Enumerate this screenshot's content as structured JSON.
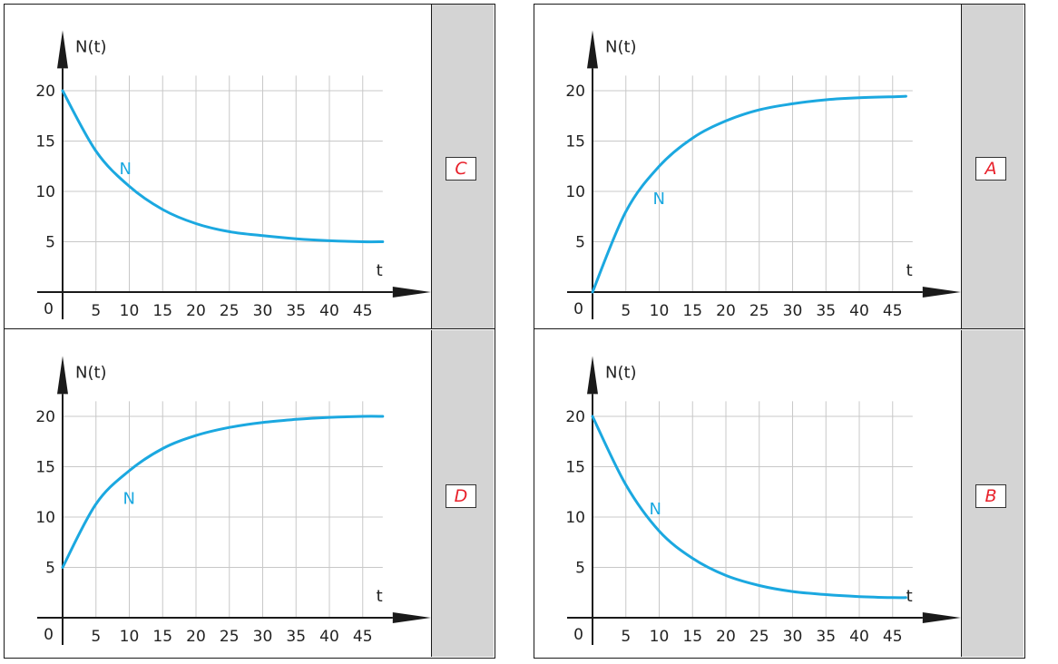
{
  "chart_data": [
    {
      "type": "line",
      "panel": "top-left",
      "label": "C",
      "ylabel": "N(t)",
      "xlabel": "t",
      "origin_label": "0",
      "curve_label": "N",
      "xlim": [
        0,
        48
      ],
      "ylim": [
        0,
        22
      ],
      "xticks": [
        5,
        10,
        15,
        20,
        25,
        30,
        35,
        40,
        45
      ],
      "yticks": [
        5,
        10,
        15,
        20
      ],
      "grid": true,
      "series": [
        {
          "x": [
            0,
            5,
            10,
            15,
            20,
            25,
            30,
            35,
            40,
            45,
            48
          ],
          "y": [
            20,
            14.0,
            10.5,
            8.2,
            6.8,
            6.0,
            5.6,
            5.3,
            5.1,
            5.0,
            5.0
          ]
        }
      ]
    },
    {
      "type": "line",
      "panel": "top-right",
      "label": "A",
      "ylabel": "N(t)",
      "xlabel": "t",
      "origin_label": "0",
      "curve_label": "N",
      "xlim": [
        0,
        48
      ],
      "ylim": [
        0,
        22
      ],
      "xticks": [
        5,
        10,
        15,
        20,
        25,
        30,
        35,
        40,
        45
      ],
      "yticks": [
        5,
        10,
        15,
        20
      ],
      "grid": true,
      "series": [
        {
          "x": [
            0,
            5,
            10,
            15,
            20,
            25,
            30,
            35,
            40,
            45,
            47
          ],
          "y": [
            0,
            8.0,
            12.5,
            15.3,
            17.0,
            18.1,
            18.7,
            19.1,
            19.3,
            19.4,
            19.45
          ]
        }
      ]
    },
    {
      "type": "line",
      "panel": "bottom-left",
      "label": "D",
      "ylabel": "N(t)",
      "xlabel": "t",
      "origin_label": "0",
      "curve_label": "N",
      "xlim": [
        0,
        48
      ],
      "ylim": [
        0,
        22
      ],
      "xticks": [
        5,
        10,
        15,
        20,
        25,
        30,
        35,
        40,
        45
      ],
      "yticks": [
        5,
        10,
        15,
        20
      ],
      "grid": true,
      "series": [
        {
          "x": [
            0,
            5,
            10,
            15,
            20,
            25,
            30,
            35,
            40,
            45,
            48
          ],
          "y": [
            5,
            11.3,
            14.6,
            16.8,
            18.1,
            18.9,
            19.4,
            19.7,
            19.9,
            20.0,
            20.0
          ]
        }
      ]
    },
    {
      "type": "line",
      "panel": "bottom-right",
      "label": "B",
      "ylabel": "N(t)",
      "xlabel": "t",
      "origin_label": "0",
      "curve_label": "N",
      "xlim": [
        0,
        48
      ],
      "ylim": [
        0,
        22
      ],
      "xticks": [
        5,
        10,
        15,
        20,
        25,
        30,
        35,
        40,
        45
      ],
      "yticks": [
        5,
        10,
        15,
        20
      ],
      "grid": true,
      "series": [
        {
          "x": [
            0,
            5,
            10,
            15,
            20,
            25,
            30,
            35,
            40,
            45,
            47
          ],
          "y": [
            20,
            13.2,
            8.6,
            5.9,
            4.2,
            3.2,
            2.6,
            2.3,
            2.1,
            2.0,
            2.0
          ]
        }
      ]
    }
  ],
  "colors": {
    "curve": "#1ba8e0",
    "grid": "#c8c8c8",
    "axis": "#1a1a1a",
    "label": "#1ba8e0",
    "badge_text": "#e8202a",
    "side_panel": "#d4d4d4"
  }
}
